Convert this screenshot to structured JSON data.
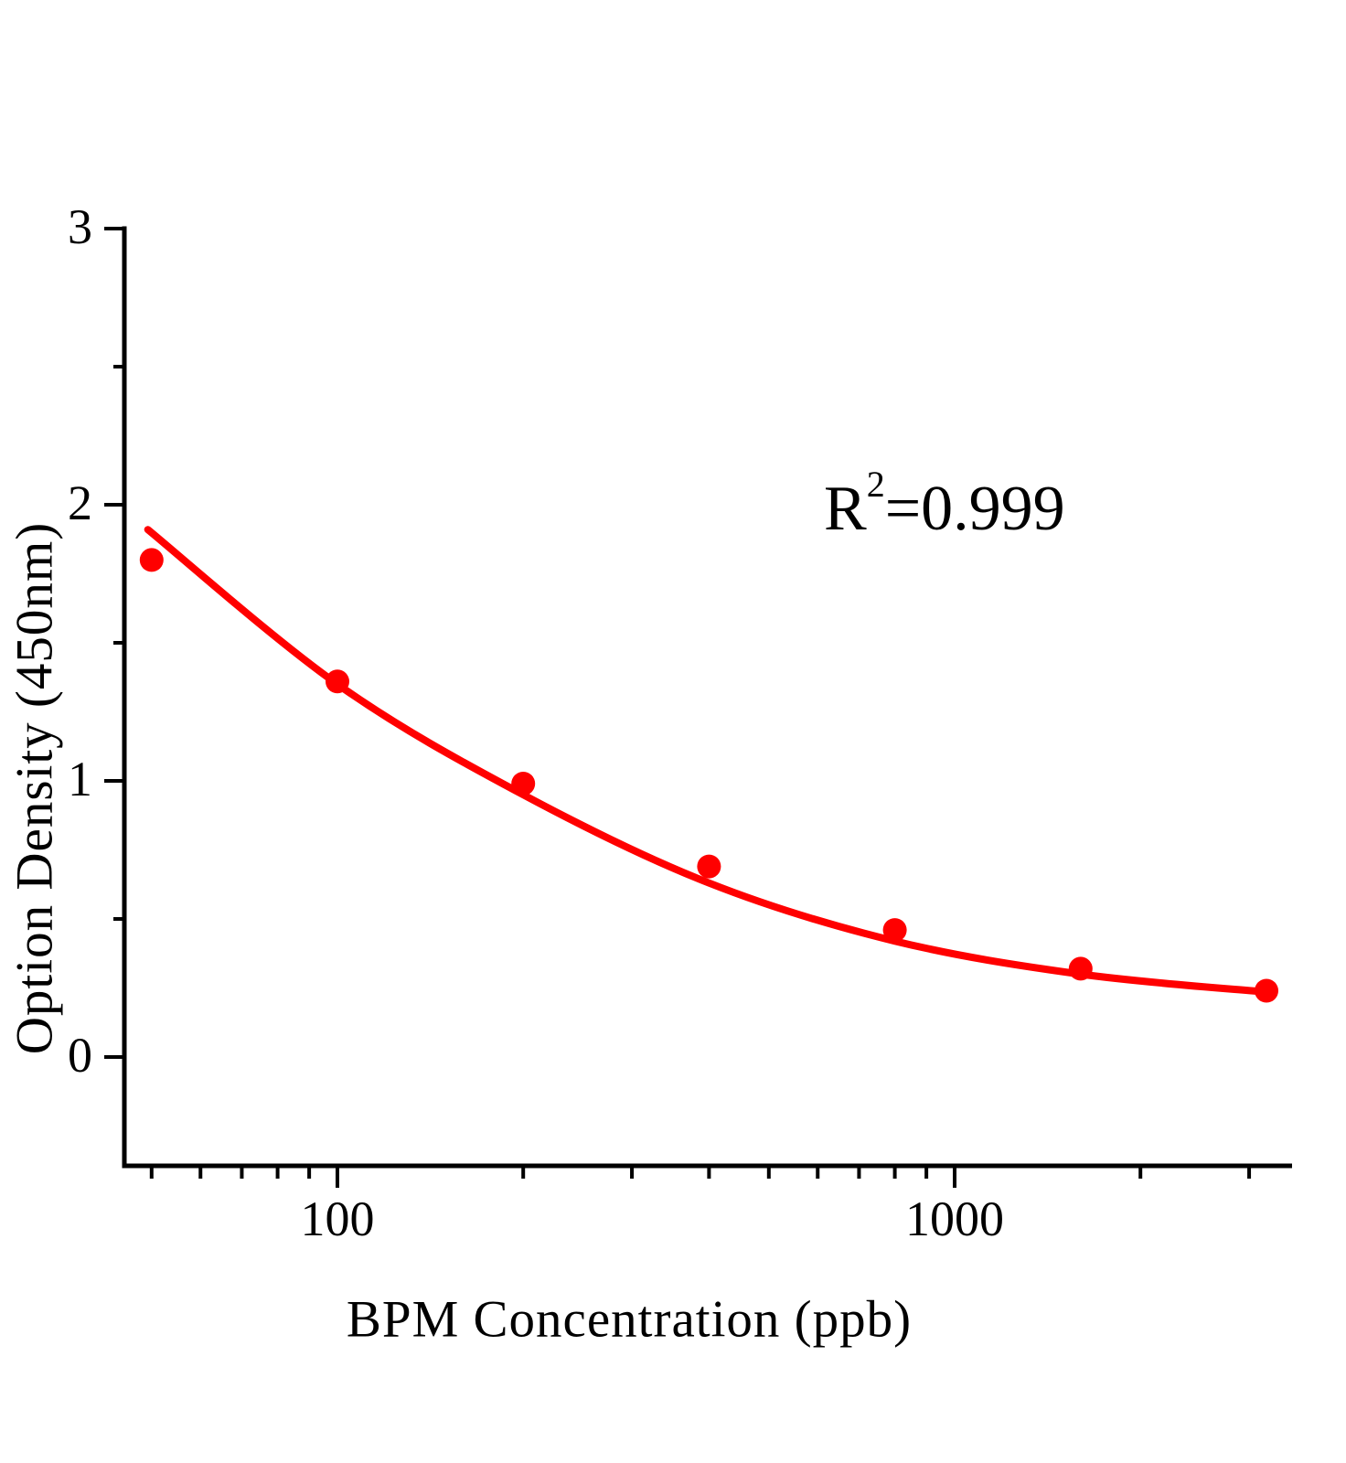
{
  "figure": {
    "background_color": "#ffffff",
    "axis_color": "#000000",
    "series_color": "#ff0000"
  },
  "chart_data": {
    "type": "scatter",
    "title": "",
    "xlabel": "BPM Concentration (ppb)",
    "ylabel": "Option Density (450nm)",
    "x_scale": "log10",
    "xlim": [
      45,
      3520
    ],
    "ylim": [
      -0.39,
      3.0
    ],
    "grid": false,
    "legend": null,
    "annotation": {
      "base": "R",
      "sup": "2",
      "rest": "=0.999"
    },
    "r_squared": 0.999,
    "x_axis": {
      "major_ticks": [
        {
          "value": 100,
          "label": "100"
        },
        {
          "value": 1000,
          "label": "1000"
        }
      ],
      "minor_ticks": [
        50,
        60,
        70,
        80,
        90,
        200,
        300,
        400,
        500,
        600,
        700,
        800,
        900,
        2000,
        3000
      ]
    },
    "y_axis": {
      "major_ticks": [
        {
          "value": 0,
          "label": "0"
        },
        {
          "value": 1,
          "label": "1"
        },
        {
          "value": 2,
          "label": "2"
        },
        {
          "value": 3,
          "label": "3"
        }
      ],
      "minor_ticks": [
        0.5,
        1.5,
        2.5
      ]
    },
    "series": [
      {
        "name": "standard-points",
        "type": "scatter",
        "marker": "circle",
        "color": "#ff0000",
        "points": [
          {
            "x": 50,
            "y": 1.8
          },
          {
            "x": 100,
            "y": 1.36
          },
          {
            "x": 200,
            "y": 0.99
          },
          {
            "x": 400,
            "y": 0.69
          },
          {
            "x": 800,
            "y": 0.46
          },
          {
            "x": 1600,
            "y": 0.32
          },
          {
            "x": 3200,
            "y": 0.24
          }
        ]
      },
      {
        "name": "fit-curve",
        "type": "line",
        "color": "#ff0000",
        "points": [
          {
            "x": 49.3,
            "y": 1.91
          },
          {
            "x": 100,
            "y": 1.35
          },
          {
            "x": 200,
            "y": 0.95
          },
          {
            "x": 400,
            "y": 0.63
          },
          {
            "x": 800,
            "y": 0.42
          },
          {
            "x": 1600,
            "y": 0.3
          },
          {
            "x": 3200,
            "y": 0.235
          }
        ]
      }
    ]
  }
}
